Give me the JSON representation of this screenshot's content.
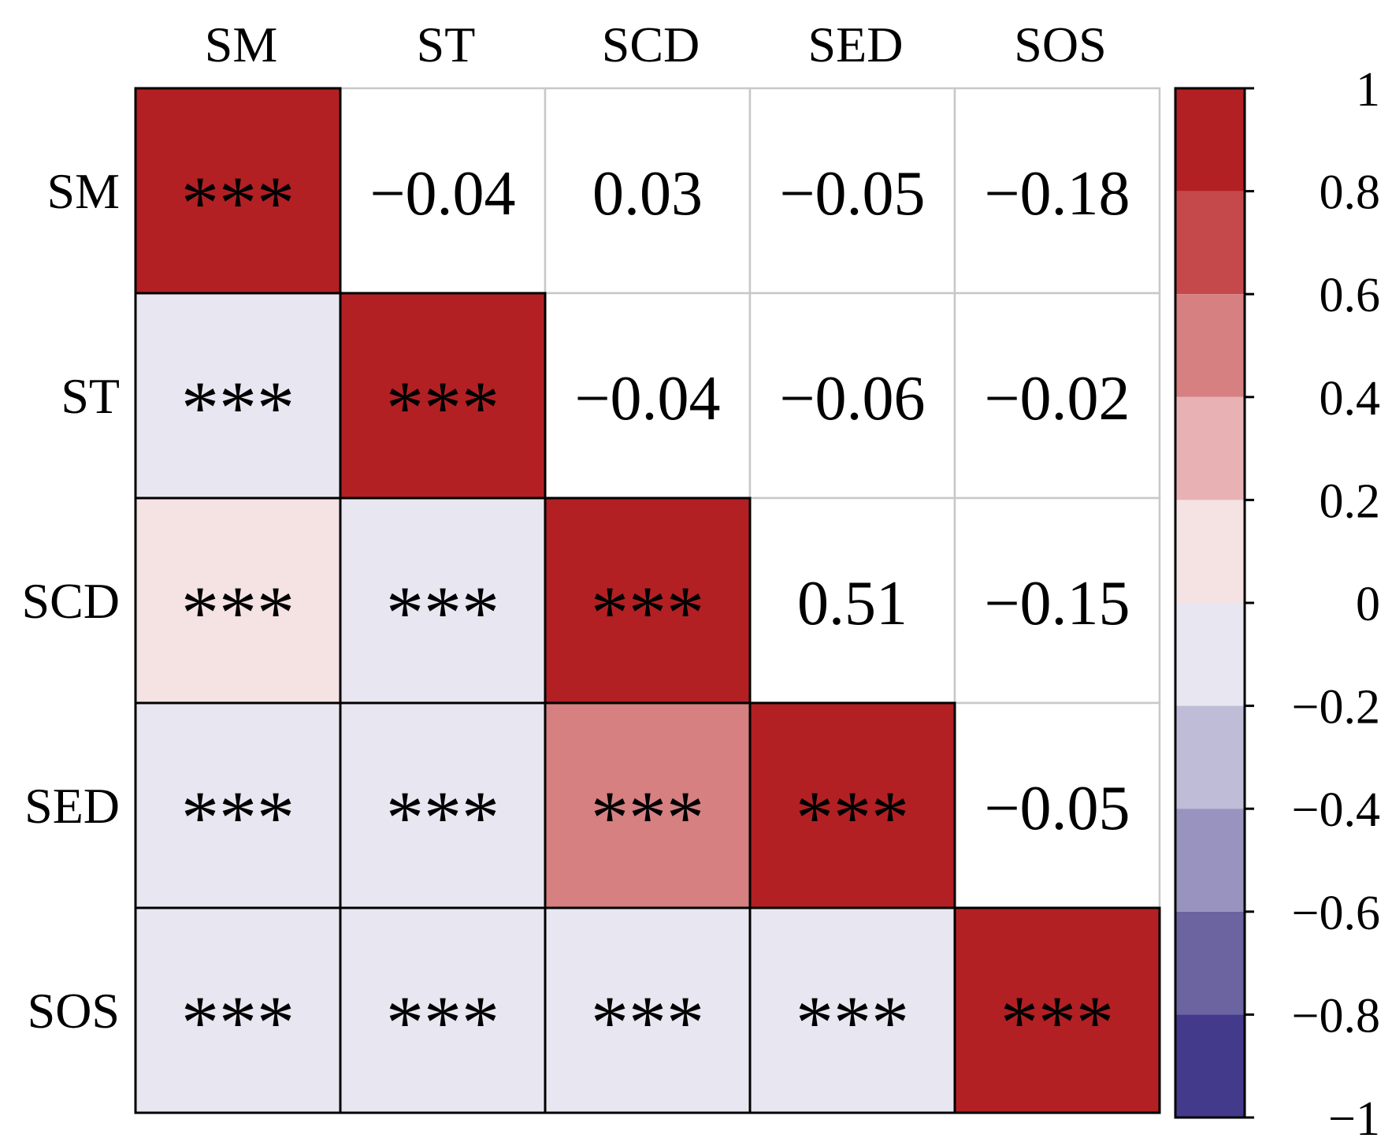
{
  "chart_data": {
    "type": "heatmap",
    "title": "",
    "variables": [
      "SM",
      "ST",
      "SCD",
      "SED",
      "SOS"
    ],
    "upper_values": [
      [
        "",
        "−0.04",
        "0.03",
        "−0.05",
        "−0.18"
      ],
      [
        "",
        "",
        "−0.04",
        "−0.06",
        "−0.02"
      ],
      [
        "",
        "",
        "",
        "0.51",
        "−0.15"
      ],
      [
        "",
        "",
        "",
        "",
        "−0.05"
      ],
      [
        "",
        "",
        "",
        "",
        ""
      ]
    ],
    "lower_significance": [
      [
        "***",
        "",
        "",
        "",
        ""
      ],
      [
        "***",
        "***",
        "",
        "",
        ""
      ],
      [
        "***",
        "***",
        "***",
        "",
        ""
      ],
      [
        "***",
        "***",
        "***",
        "***",
        ""
      ],
      [
        "***",
        "***",
        "***",
        "***",
        "***"
      ]
    ],
    "lower_fill_values": [
      [
        1,
        null,
        null,
        null,
        null
      ],
      [
        -0.04,
        1,
        null,
        null,
        null
      ],
      [
        0.03,
        -0.04,
        1,
        null,
        null
      ],
      [
        -0.05,
        -0.06,
        0.51,
        1,
        null
      ],
      [
        -0.18,
        -0.02,
        -0.15,
        -0.05,
        1
      ]
    ],
    "colorbar": {
      "range": [
        -1,
        1
      ],
      "ticks": [
        1,
        0.8,
        0.6,
        0.4,
        0.2,
        0,
        -0.2,
        -0.4,
        -0.6,
        -0.8,
        -1
      ],
      "tick_labels": [
        "1",
        "0.8",
        "0.6",
        "0.4",
        "0.2",
        "0",
        "−0.2",
        "−0.4",
        "−0.6",
        "−0.8",
        "−1"
      ],
      "bins": [
        {
          "from": 0.8,
          "to": 1.0,
          "color": "#b22024"
        },
        {
          "from": 0.6,
          "to": 0.8,
          "color": "#c5494b"
        },
        {
          "from": 0.4,
          "to": 0.6,
          "color": "#d68081"
        },
        {
          "from": 0.2,
          "to": 0.4,
          "color": "#e8b2b4"
        },
        {
          "from": 0.0,
          "to": 0.2,
          "color": "#f5e2e3"
        },
        {
          "from": -0.2,
          "to": 0.0,
          "color": "#e8e7f1"
        },
        {
          "from": -0.4,
          "to": -0.2,
          "color": "#bebcd6"
        },
        {
          "from": -0.6,
          "to": -0.4,
          "color": "#9993bf"
        },
        {
          "from": -0.8,
          "to": -0.6,
          "color": "#6c63a1"
        },
        {
          "from": -1.0,
          "to": -0.8,
          "color": "#443a8c"
        }
      ]
    }
  }
}
